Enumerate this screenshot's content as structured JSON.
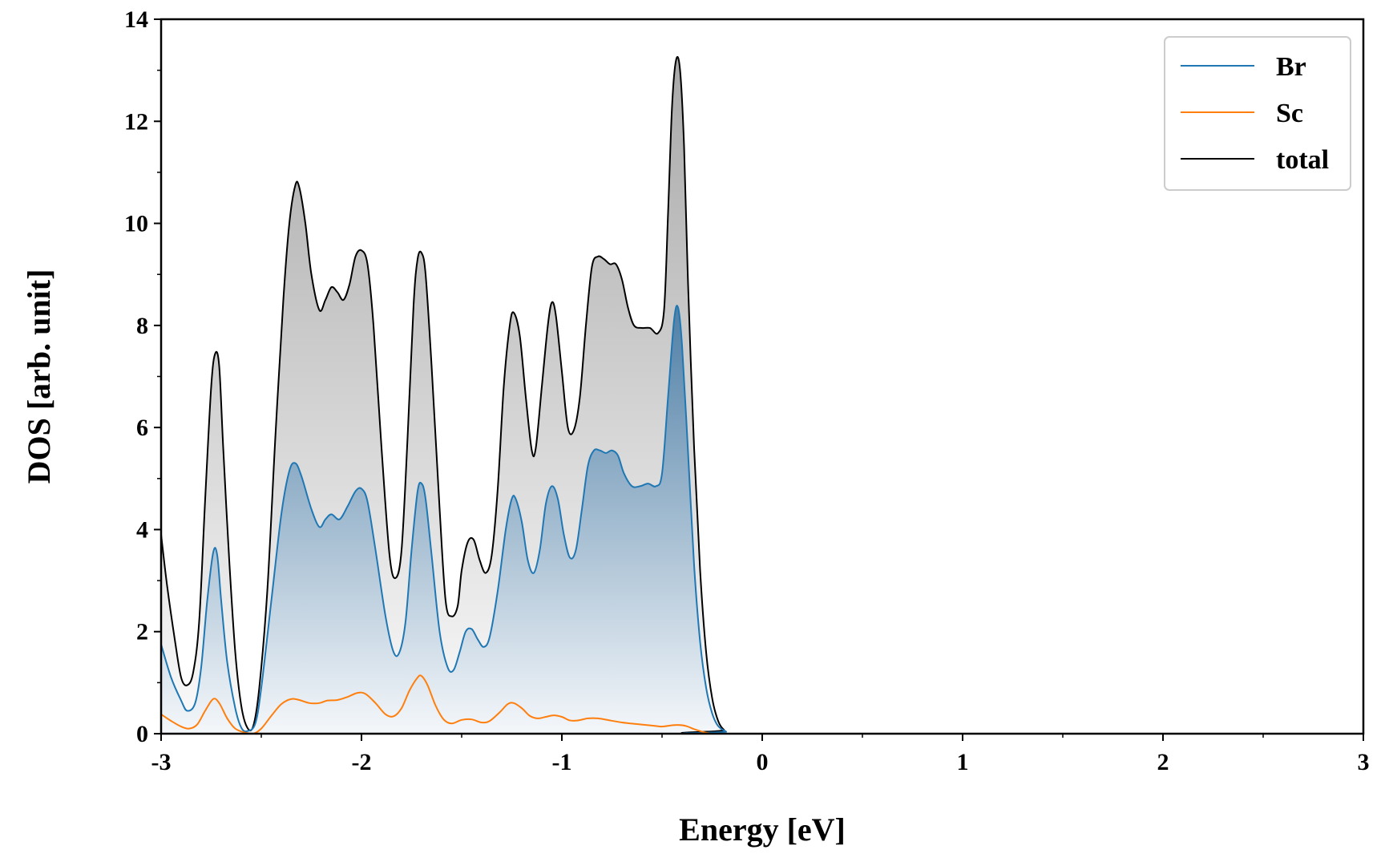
{
  "chart_data": {
    "type": "area",
    "title": "",
    "xlabel": "Energy [eV]",
    "ylabel": "DOS [arb. unit]",
    "xlim": [
      -3,
      3
    ],
    "ylim": [
      0,
      14
    ],
    "x_ticks": [
      -3,
      -2,
      -1,
      0,
      1,
      2,
      3
    ],
    "x_tick_labels": [
      "-3",
      "-2",
      "-1",
      "0",
      "1",
      "2",
      "3"
    ],
    "y_ticks": [
      0,
      2,
      4,
      6,
      8,
      10,
      12,
      14
    ],
    "y_tick_labels": [
      "0",
      "2",
      "4",
      "6",
      "8",
      "10",
      "12",
      "14"
    ],
    "grid": false,
    "legend_position": "top-right",
    "series": [
      {
        "name": "Br",
        "color": "#1f77b4",
        "filled": true,
        "points": [
          [
            -3.0,
            1.75
          ],
          [
            -2.95,
            1.1
          ],
          [
            -2.9,
            0.65
          ],
          [
            -2.87,
            0.45
          ],
          [
            -2.83,
            0.6
          ],
          [
            -2.8,
            1.3
          ],
          [
            -2.77,
            2.6
          ],
          [
            -2.74,
            3.55
          ],
          [
            -2.72,
            3.5
          ],
          [
            -2.7,
            2.6
          ],
          [
            -2.67,
            1.4
          ],
          [
            -2.63,
            0.5
          ],
          [
            -2.6,
            0.12
          ],
          [
            -2.57,
            0.05
          ],
          [
            -2.53,
            0.2
          ],
          [
            -2.5,
            0.9
          ],
          [
            -2.45,
            2.6
          ],
          [
            -2.4,
            4.3
          ],
          [
            -2.36,
            5.15
          ],
          [
            -2.33,
            5.3
          ],
          [
            -2.3,
            5.05
          ],
          [
            -2.25,
            4.4
          ],
          [
            -2.21,
            4.05
          ],
          [
            -2.18,
            4.2
          ],
          [
            -2.15,
            4.3
          ],
          [
            -2.11,
            4.2
          ],
          [
            -2.07,
            4.45
          ],
          [
            -2.03,
            4.75
          ],
          [
            -2.0,
            4.8
          ],
          [
            -1.97,
            4.55
          ],
          [
            -1.93,
            3.6
          ],
          [
            -1.88,
            2.3
          ],
          [
            -1.84,
            1.6
          ],
          [
            -1.81,
            1.6
          ],
          [
            -1.78,
            2.2
          ],
          [
            -1.75,
            3.6
          ],
          [
            -1.72,
            4.75
          ],
          [
            -1.7,
            4.9
          ],
          [
            -1.68,
            4.6
          ],
          [
            -1.65,
            3.5
          ],
          [
            -1.61,
            2.0
          ],
          [
            -1.57,
            1.3
          ],
          [
            -1.54,
            1.25
          ],
          [
            -1.51,
            1.6
          ],
          [
            -1.48,
            2.0
          ],
          [
            -1.45,
            2.05
          ],
          [
            -1.42,
            1.85
          ],
          [
            -1.39,
            1.7
          ],
          [
            -1.36,
            1.9
          ],
          [
            -1.32,
            2.8
          ],
          [
            -1.28,
            4.0
          ],
          [
            -1.25,
            4.6
          ],
          [
            -1.23,
            4.6
          ],
          [
            -1.2,
            4.15
          ],
          [
            -1.17,
            3.4
          ],
          [
            -1.14,
            3.15
          ],
          [
            -1.11,
            3.6
          ],
          [
            -1.08,
            4.5
          ],
          [
            -1.05,
            4.85
          ],
          [
            -1.02,
            4.6
          ],
          [
            -0.99,
            3.9
          ],
          [
            -0.96,
            3.45
          ],
          [
            -0.93,
            3.6
          ],
          [
            -0.9,
            4.4
          ],
          [
            -0.87,
            5.25
          ],
          [
            -0.84,
            5.55
          ],
          [
            -0.81,
            5.55
          ],
          [
            -0.78,
            5.5
          ],
          [
            -0.75,
            5.55
          ],
          [
            -0.72,
            5.45
          ],
          [
            -0.69,
            5.1
          ],
          [
            -0.65,
            4.85
          ],
          [
            -0.61,
            4.85
          ],
          [
            -0.57,
            4.9
          ],
          [
            -0.53,
            4.85
          ],
          [
            -0.5,
            5.1
          ],
          [
            -0.47,
            6.6
          ],
          [
            -0.44,
            8.1
          ],
          [
            -0.42,
            8.35
          ],
          [
            -0.4,
            7.6
          ],
          [
            -0.37,
            5.5
          ],
          [
            -0.34,
            3.3
          ],
          [
            -0.31,
            1.8
          ],
          [
            -0.28,
            0.9
          ],
          [
            -0.25,
            0.4
          ],
          [
            -0.22,
            0.15
          ],
          [
            -0.18,
            0.04
          ],
          [
            -0.15,
            0.0
          ],
          [
            3.0,
            0.0
          ]
        ]
      },
      {
        "name": "Sc",
        "color": "#ff7f0e",
        "filled": false,
        "points": [
          [
            -3.0,
            0.38
          ],
          [
            -2.95,
            0.25
          ],
          [
            -2.9,
            0.14
          ],
          [
            -2.86,
            0.1
          ],
          [
            -2.82,
            0.18
          ],
          [
            -2.78,
            0.45
          ],
          [
            -2.74,
            0.68
          ],
          [
            -2.71,
            0.6
          ],
          [
            -2.67,
            0.3
          ],
          [
            -2.63,
            0.1
          ],
          [
            -2.58,
            0.02
          ],
          [
            -2.54,
            0.0
          ],
          [
            -2.5,
            0.1
          ],
          [
            -2.45,
            0.35
          ],
          [
            -2.4,
            0.58
          ],
          [
            -2.35,
            0.68
          ],
          [
            -2.31,
            0.66
          ],
          [
            -2.26,
            0.6
          ],
          [
            -2.21,
            0.6
          ],
          [
            -2.17,
            0.65
          ],
          [
            -2.12,
            0.66
          ],
          [
            -2.07,
            0.72
          ],
          [
            -2.02,
            0.8
          ],
          [
            -1.98,
            0.78
          ],
          [
            -1.93,
            0.6
          ],
          [
            -1.88,
            0.38
          ],
          [
            -1.84,
            0.34
          ],
          [
            -1.8,
            0.5
          ],
          [
            -1.76,
            0.85
          ],
          [
            -1.72,
            1.1
          ],
          [
            -1.7,
            1.13
          ],
          [
            -1.67,
            0.95
          ],
          [
            -1.63,
            0.55
          ],
          [
            -1.59,
            0.28
          ],
          [
            -1.55,
            0.2
          ],
          [
            -1.5,
            0.27
          ],
          [
            -1.45,
            0.28
          ],
          [
            -1.4,
            0.22
          ],
          [
            -1.36,
            0.25
          ],
          [
            -1.31,
            0.42
          ],
          [
            -1.27,
            0.58
          ],
          [
            -1.24,
            0.6
          ],
          [
            -1.2,
            0.5
          ],
          [
            -1.16,
            0.35
          ],
          [
            -1.12,
            0.3
          ],
          [
            -1.08,
            0.33
          ],
          [
            -1.04,
            0.36
          ],
          [
            -1.0,
            0.33
          ],
          [
            -0.96,
            0.26
          ],
          [
            -0.92,
            0.26
          ],
          [
            -0.87,
            0.3
          ],
          [
            -0.82,
            0.3
          ],
          [
            -0.76,
            0.26
          ],
          [
            -0.7,
            0.22
          ],
          [
            -0.63,
            0.19
          ],
          [
            -0.55,
            0.16
          ],
          [
            -0.5,
            0.14
          ],
          [
            -0.46,
            0.16
          ],
          [
            -0.42,
            0.17
          ],
          [
            -0.38,
            0.15
          ],
          [
            -0.34,
            0.09
          ],
          [
            -0.3,
            0.04
          ],
          [
            -0.26,
            0.0
          ]
        ]
      },
      {
        "name": "total",
        "color": "#000000",
        "filled": true,
        "points": [
          [
            -3.0,
            3.9
          ],
          [
            -2.97,
            2.9
          ],
          [
            -2.93,
            1.8
          ],
          [
            -2.9,
            1.1
          ],
          [
            -2.87,
            0.95
          ],
          [
            -2.84,
            1.2
          ],
          [
            -2.81,
            2.2
          ],
          [
            -2.78,
            4.6
          ],
          [
            -2.75,
            6.8
          ],
          [
            -2.73,
            7.45
          ],
          [
            -2.71,
            7.2
          ],
          [
            -2.69,
            5.6
          ],
          [
            -2.66,
            3.4
          ],
          [
            -2.63,
            1.6
          ],
          [
            -2.6,
            0.55
          ],
          [
            -2.57,
            0.12
          ],
          [
            -2.54,
            0.15
          ],
          [
            -2.51,
            0.9
          ],
          [
            -2.47,
            2.8
          ],
          [
            -2.43,
            5.8
          ],
          [
            -2.39,
            8.5
          ],
          [
            -2.36,
            10.0
          ],
          [
            -2.33,
            10.75
          ],
          [
            -2.31,
            10.7
          ],
          [
            -2.28,
            10.0
          ],
          [
            -2.25,
            9.0
          ],
          [
            -2.21,
            8.3
          ],
          [
            -2.18,
            8.5
          ],
          [
            -2.15,
            8.75
          ],
          [
            -2.12,
            8.65
          ],
          [
            -2.09,
            8.5
          ],
          [
            -2.06,
            8.8
          ],
          [
            -2.03,
            9.35
          ],
          [
            -2.0,
            9.47
          ],
          [
            -1.97,
            9.2
          ],
          [
            -1.94,
            8.0
          ],
          [
            -1.9,
            5.6
          ],
          [
            -1.86,
            3.5
          ],
          [
            -1.83,
            3.05
          ],
          [
            -1.8,
            3.6
          ],
          [
            -1.77,
            5.8
          ],
          [
            -1.74,
            8.4
          ],
          [
            -1.72,
            9.3
          ],
          [
            -1.7,
            9.42
          ],
          [
            -1.68,
            9.0
          ],
          [
            -1.65,
            7.2
          ],
          [
            -1.61,
            4.4
          ],
          [
            -1.58,
            2.6
          ],
          [
            -1.55,
            2.3
          ],
          [
            -1.52,
            2.5
          ],
          [
            -1.5,
            3.2
          ],
          [
            -1.47,
            3.75
          ],
          [
            -1.44,
            3.8
          ],
          [
            -1.41,
            3.4
          ],
          [
            -1.38,
            3.15
          ],
          [
            -1.35,
            3.5
          ],
          [
            -1.32,
            4.8
          ],
          [
            -1.29,
            6.8
          ],
          [
            -1.26,
            8.0
          ],
          [
            -1.24,
            8.25
          ],
          [
            -1.21,
            7.8
          ],
          [
            -1.18,
            6.6
          ],
          [
            -1.15,
            5.55
          ],
          [
            -1.13,
            5.6
          ],
          [
            -1.1,
            6.8
          ],
          [
            -1.07,
            8.0
          ],
          [
            -1.05,
            8.45
          ],
          [
            -1.03,
            8.2
          ],
          [
            -1.0,
            7.1
          ],
          [
            -0.97,
            6.0
          ],
          [
            -0.94,
            5.95
          ],
          [
            -0.91,
            6.6
          ],
          [
            -0.88,
            8.0
          ],
          [
            -0.85,
            9.15
          ],
          [
            -0.82,
            9.35
          ],
          [
            -0.79,
            9.3
          ],
          [
            -0.76,
            9.2
          ],
          [
            -0.73,
            9.2
          ],
          [
            -0.7,
            8.9
          ],
          [
            -0.67,
            8.35
          ],
          [
            -0.64,
            8.0
          ],
          [
            -0.6,
            7.95
          ],
          [
            -0.56,
            7.95
          ],
          [
            -0.52,
            7.85
          ],
          [
            -0.49,
            8.3
          ],
          [
            -0.47,
            10.2
          ],
          [
            -0.45,
            12.3
          ],
          [
            -0.43,
            13.2
          ],
          [
            -0.41,
            13.0
          ],
          [
            -0.39,
            11.5
          ],
          [
            -0.37,
            8.8
          ],
          [
            -0.34,
            5.6
          ],
          [
            -0.31,
            3.2
          ],
          [
            -0.28,
            1.6
          ],
          [
            -0.25,
            0.7
          ],
          [
            -0.22,
            0.25
          ],
          [
            -0.19,
            0.07
          ],
          [
            -0.16,
            0.0
          ],
          [
            3.0,
            0.0
          ]
        ]
      }
    ]
  }
}
